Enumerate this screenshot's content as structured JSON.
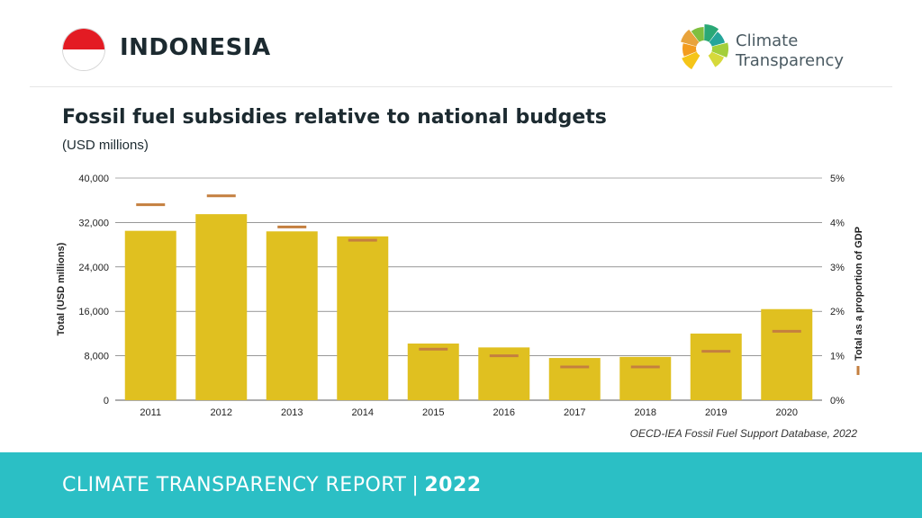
{
  "header": {
    "country": "INDONESIA",
    "brand_line1": "Climate",
    "brand_line2": "Transparency",
    "flag_colors": {
      "top": "#e31b23",
      "bottom": "#ffffff"
    }
  },
  "title": "Fossil fuel subsidies relative to national budgets",
  "subtitle": "(USD millions)",
  "source": "OECD-IEA Fossil Fuel Support Database, 2022",
  "footer": {
    "text": "CLIMATE TRANSPARENCY REPORT",
    "separator": "|",
    "year": "2022",
    "color": "#2bbfc5"
  },
  "colors": {
    "bar": "#e0c020",
    "marker": "#c47f3f",
    "grid": "#5a5a5a"
  },
  "logo": {
    "segments": [
      {
        "color": "#f5c518"
      },
      {
        "color": "#f39c1f"
      },
      {
        "color": "#e8a33c"
      },
      {
        "color": "#7fbf3f"
      },
      {
        "color": "#2aa876"
      },
      {
        "color": "#25a59a"
      },
      {
        "color": "#a3cf3a"
      },
      {
        "color": "#d6d93b"
      }
    ]
  },
  "chart_data": {
    "type": "bar",
    "title": "Fossil fuel subsidies relative to national budgets",
    "categories": [
      "2011",
      "2012",
      "2013",
      "2014",
      "2015",
      "2016",
      "2017",
      "2018",
      "2019",
      "2020"
    ],
    "series": [
      {
        "name": "Total (USD millions)",
        "axis": "left",
        "values": [
          30500,
          33500,
          30400,
          29500,
          10200,
          9500,
          7600,
          7800,
          12000,
          16400
        ]
      },
      {
        "name": "Total as a proportion of GDP",
        "axis": "right",
        "marker": "dash",
        "values": [
          4.4,
          4.6,
          3.9,
          3.6,
          1.15,
          1.0,
          0.75,
          0.75,
          1.1,
          1.55
        ]
      }
    ],
    "ylabel": "Total (USD millions)",
    "y2label": "Total as a proportion of GDP",
    "ylim": [
      0,
      40000
    ],
    "y2lim": [
      0,
      5
    ],
    "yticks": [
      0,
      8000,
      16000,
      24000,
      32000,
      40000
    ],
    "ytick_labels": [
      "0",
      "8,000",
      "16,000",
      "24,000",
      "32,000",
      "40,000"
    ],
    "y2ticks": [
      0,
      1,
      2,
      3,
      4,
      5
    ],
    "y2tick_labels": [
      "0%",
      "1%",
      "2%",
      "3%",
      "4%",
      "5%"
    ],
    "grid": true
  }
}
